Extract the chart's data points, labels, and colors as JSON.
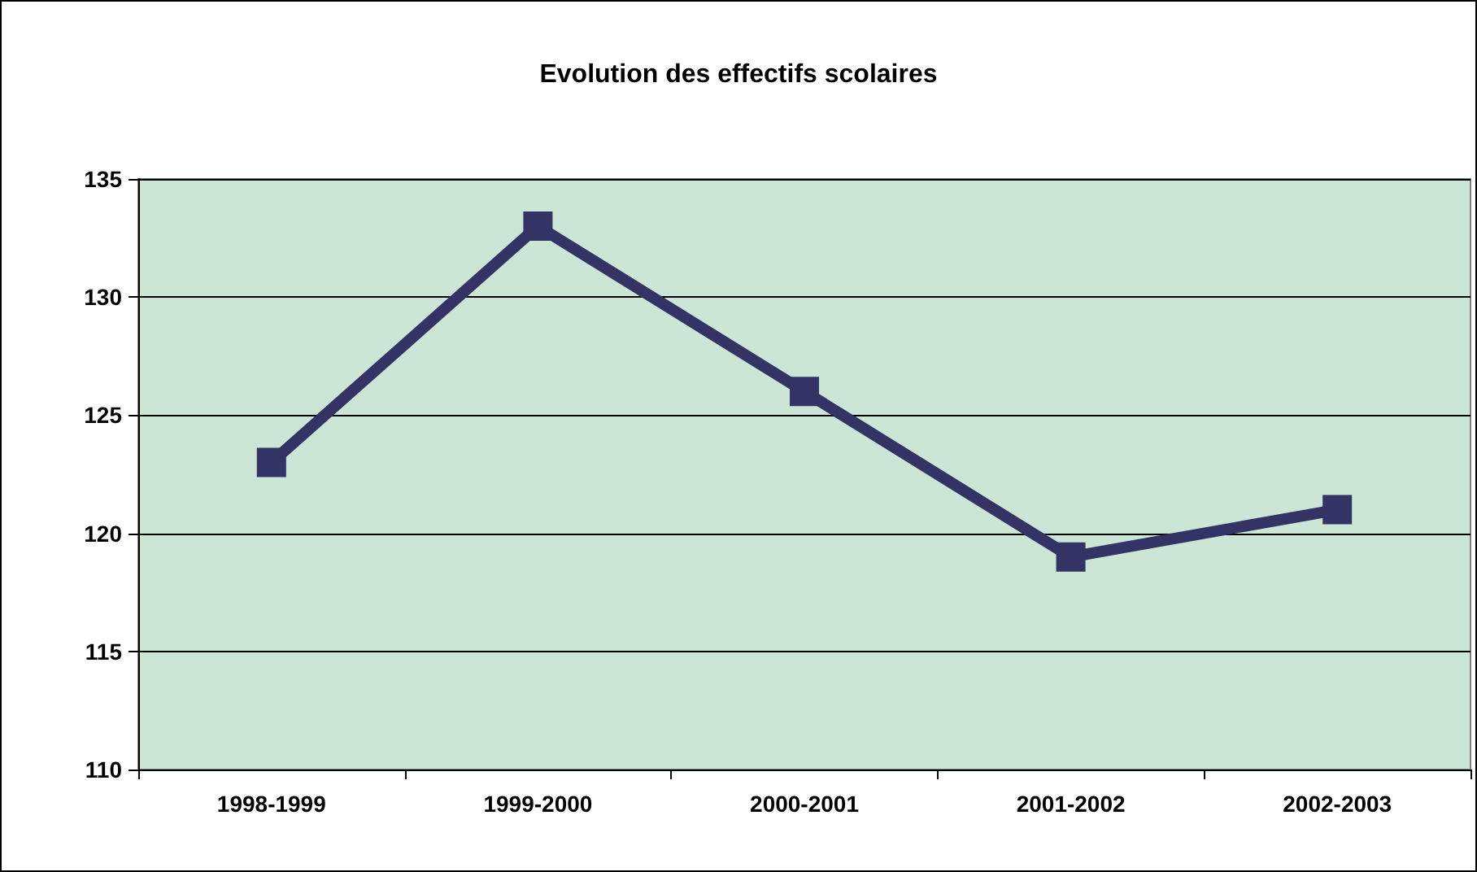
{
  "chart_data": {
    "type": "line",
    "title": "Evolution des effectifs scolaires",
    "categories": [
      "1998-1999",
      "1999-2000",
      "2000-2001",
      "2001-2002",
      "2002-2003"
    ],
    "series": [
      {
        "color": "#333366",
        "values": [
          123,
          133,
          126,
          119,
          121
        ]
      }
    ],
    "ylim": [
      110,
      135
    ],
    "yticks": [
      110,
      115,
      120,
      125,
      130,
      135
    ],
    "grid": "y",
    "marker": "square",
    "line_style": "solid"
  }
}
